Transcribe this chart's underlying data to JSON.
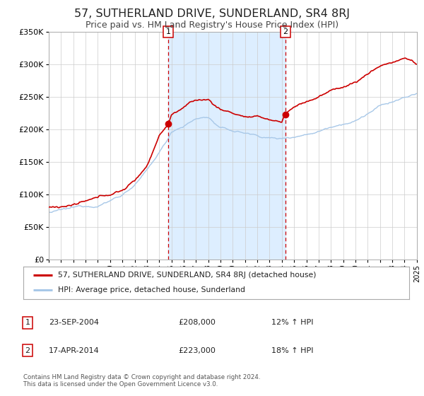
{
  "title": "57, SUTHERLAND DRIVE, SUNDERLAND, SR4 8RJ",
  "subtitle": "Price paid vs. HM Land Registry's House Price Index (HPI)",
  "title_fontsize": 11.5,
  "subtitle_fontsize": 9,
  "x_start_year": 1995,
  "x_end_year": 2025,
  "y_min": 0,
  "y_max": 350000,
  "y_ticks": [
    0,
    50000,
    100000,
    150000,
    200000,
    250000,
    300000,
    350000
  ],
  "y_tick_labels": [
    "£0",
    "£50K",
    "£100K",
    "£150K",
    "£200K",
    "£250K",
    "£300K",
    "£350K"
  ],
  "hpi_color": "#a8c8e8",
  "price_color": "#cc0000",
  "shaded_region_color": "#ddeeff",
  "marker_color": "#cc0000",
  "marker1_year": 2004.73,
  "marker1_value": 208000,
  "marker2_year": 2014.29,
  "marker2_value": 223000,
  "vline_color": "#cc0000",
  "legend_label1": "57, SUTHERLAND DRIVE, SUNDERLAND, SR4 8RJ (detached house)",
  "legend_label2": "HPI: Average price, detached house, Sunderland",
  "table_row1": [
    "1",
    "23-SEP-2004",
    "£208,000",
    "12% ↑ HPI"
  ],
  "table_row2": [
    "2",
    "17-APR-2014",
    "£223,000",
    "18% ↑ HPI"
  ],
  "footer_text": "Contains HM Land Registry data © Crown copyright and database right 2024.\nThis data is licensed under the Open Government Licence v3.0.",
  "background_color": "#ffffff",
  "grid_color": "#cccccc",
  "hpi_base_x": [
    1995,
    1996,
    1997,
    1998,
    1999,
    2000,
    2001,
    2002,
    2003,
    2004,
    2004.73,
    2005,
    2006,
    2007,
    2008,
    2009,
    2010,
    2011,
    2012,
    2013,
    2014,
    2014.29,
    2015,
    2016,
    2017,
    2018,
    2019,
    2020,
    2021,
    2022,
    2023,
    2024,
    2025
  ],
  "hpi_base_y": [
    72000,
    74000,
    76000,
    79000,
    82000,
    90000,
    100000,
    115000,
    135000,
    162000,
    183000,
    195000,
    205000,
    215000,
    218000,
    200000,
    195000,
    192000,
    188000,
    185000,
    183000,
    185000,
    188000,
    192000,
    198000,
    206000,
    213000,
    217000,
    228000,
    238000,
    244000,
    250000,
    255000
  ],
  "price_base_x": [
    1995,
    1996,
    1997,
    1998,
    1999,
    2000,
    2001,
    2002,
    2003,
    2004,
    2004.73,
    2005,
    2006,
    2007,
    2008,
    2009,
    2010,
    2011,
    2012,
    2013,
    2014,
    2014.29,
    2015,
    2016,
    2017,
    2018,
    2019,
    2020,
    2021,
    2022,
    2023,
    2024,
    2024.7,
    2025
  ],
  "price_base_y": [
    80000,
    82000,
    85000,
    88000,
    91000,
    97000,
    104000,
    118000,
    142000,
    190000,
    208000,
    222000,
    235000,
    244000,
    245000,
    230000,
    225000,
    220000,
    217000,
    213000,
    210000,
    223000,
    233000,
    242000,
    250000,
    258000,
    265000,
    272000,
    285000,
    298000,
    304000,
    310000,
    305000,
    300000
  ]
}
